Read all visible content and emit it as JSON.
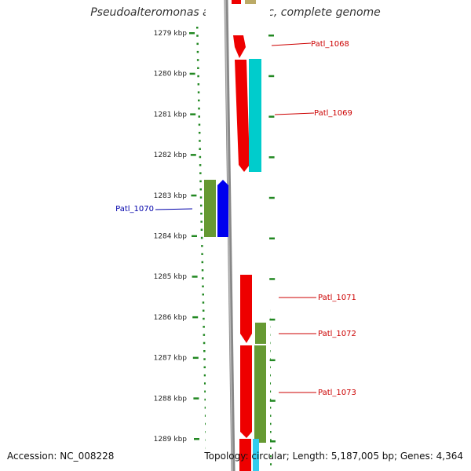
{
  "title": "Pseudoalteromonas atlantica T6c, complete genome",
  "accession": "Accession: NC_008228",
  "topology": "Topology: circular; Length: 5,187,005 bp; Genes: 4,364",
  "scale": {
    "start_kbp": 1279,
    "end_kbp": 1289,
    "tick_labels": [
      "1279 kbp",
      "1280 kbp",
      "1281 kbp",
      "1282 kbp",
      "1283 kbp",
      "1284 kbp",
      "1285 kbp",
      "1286 kbp",
      "1287 kbp",
      "1288 kbp",
      "1289 kbp"
    ]
  },
  "gene_labels": [
    {
      "label": "Patl_1068",
      "color": "#cc0000",
      "side": "right"
    },
    {
      "label": "Patl_1069",
      "color": "#cc0000",
      "side": "right"
    },
    {
      "label": "Patl_1070",
      "color": "#0000aa",
      "side": "left"
    },
    {
      "label": "Patl_1071",
      "color": "#cc0000",
      "side": "right"
    },
    {
      "label": "Patl_1072",
      "color": "#cc0000",
      "side": "right"
    },
    {
      "label": "Patl_1073",
      "color": "#cc0000",
      "side": "right"
    }
  ],
  "colors": {
    "red_feature": "#ee0000",
    "cyan_feature": "#00cccc",
    "olive_feature": "#669933",
    "blue_feature": "#0000ee",
    "backbone": "#888888",
    "ruler_ticks": "#228822"
  }
}
